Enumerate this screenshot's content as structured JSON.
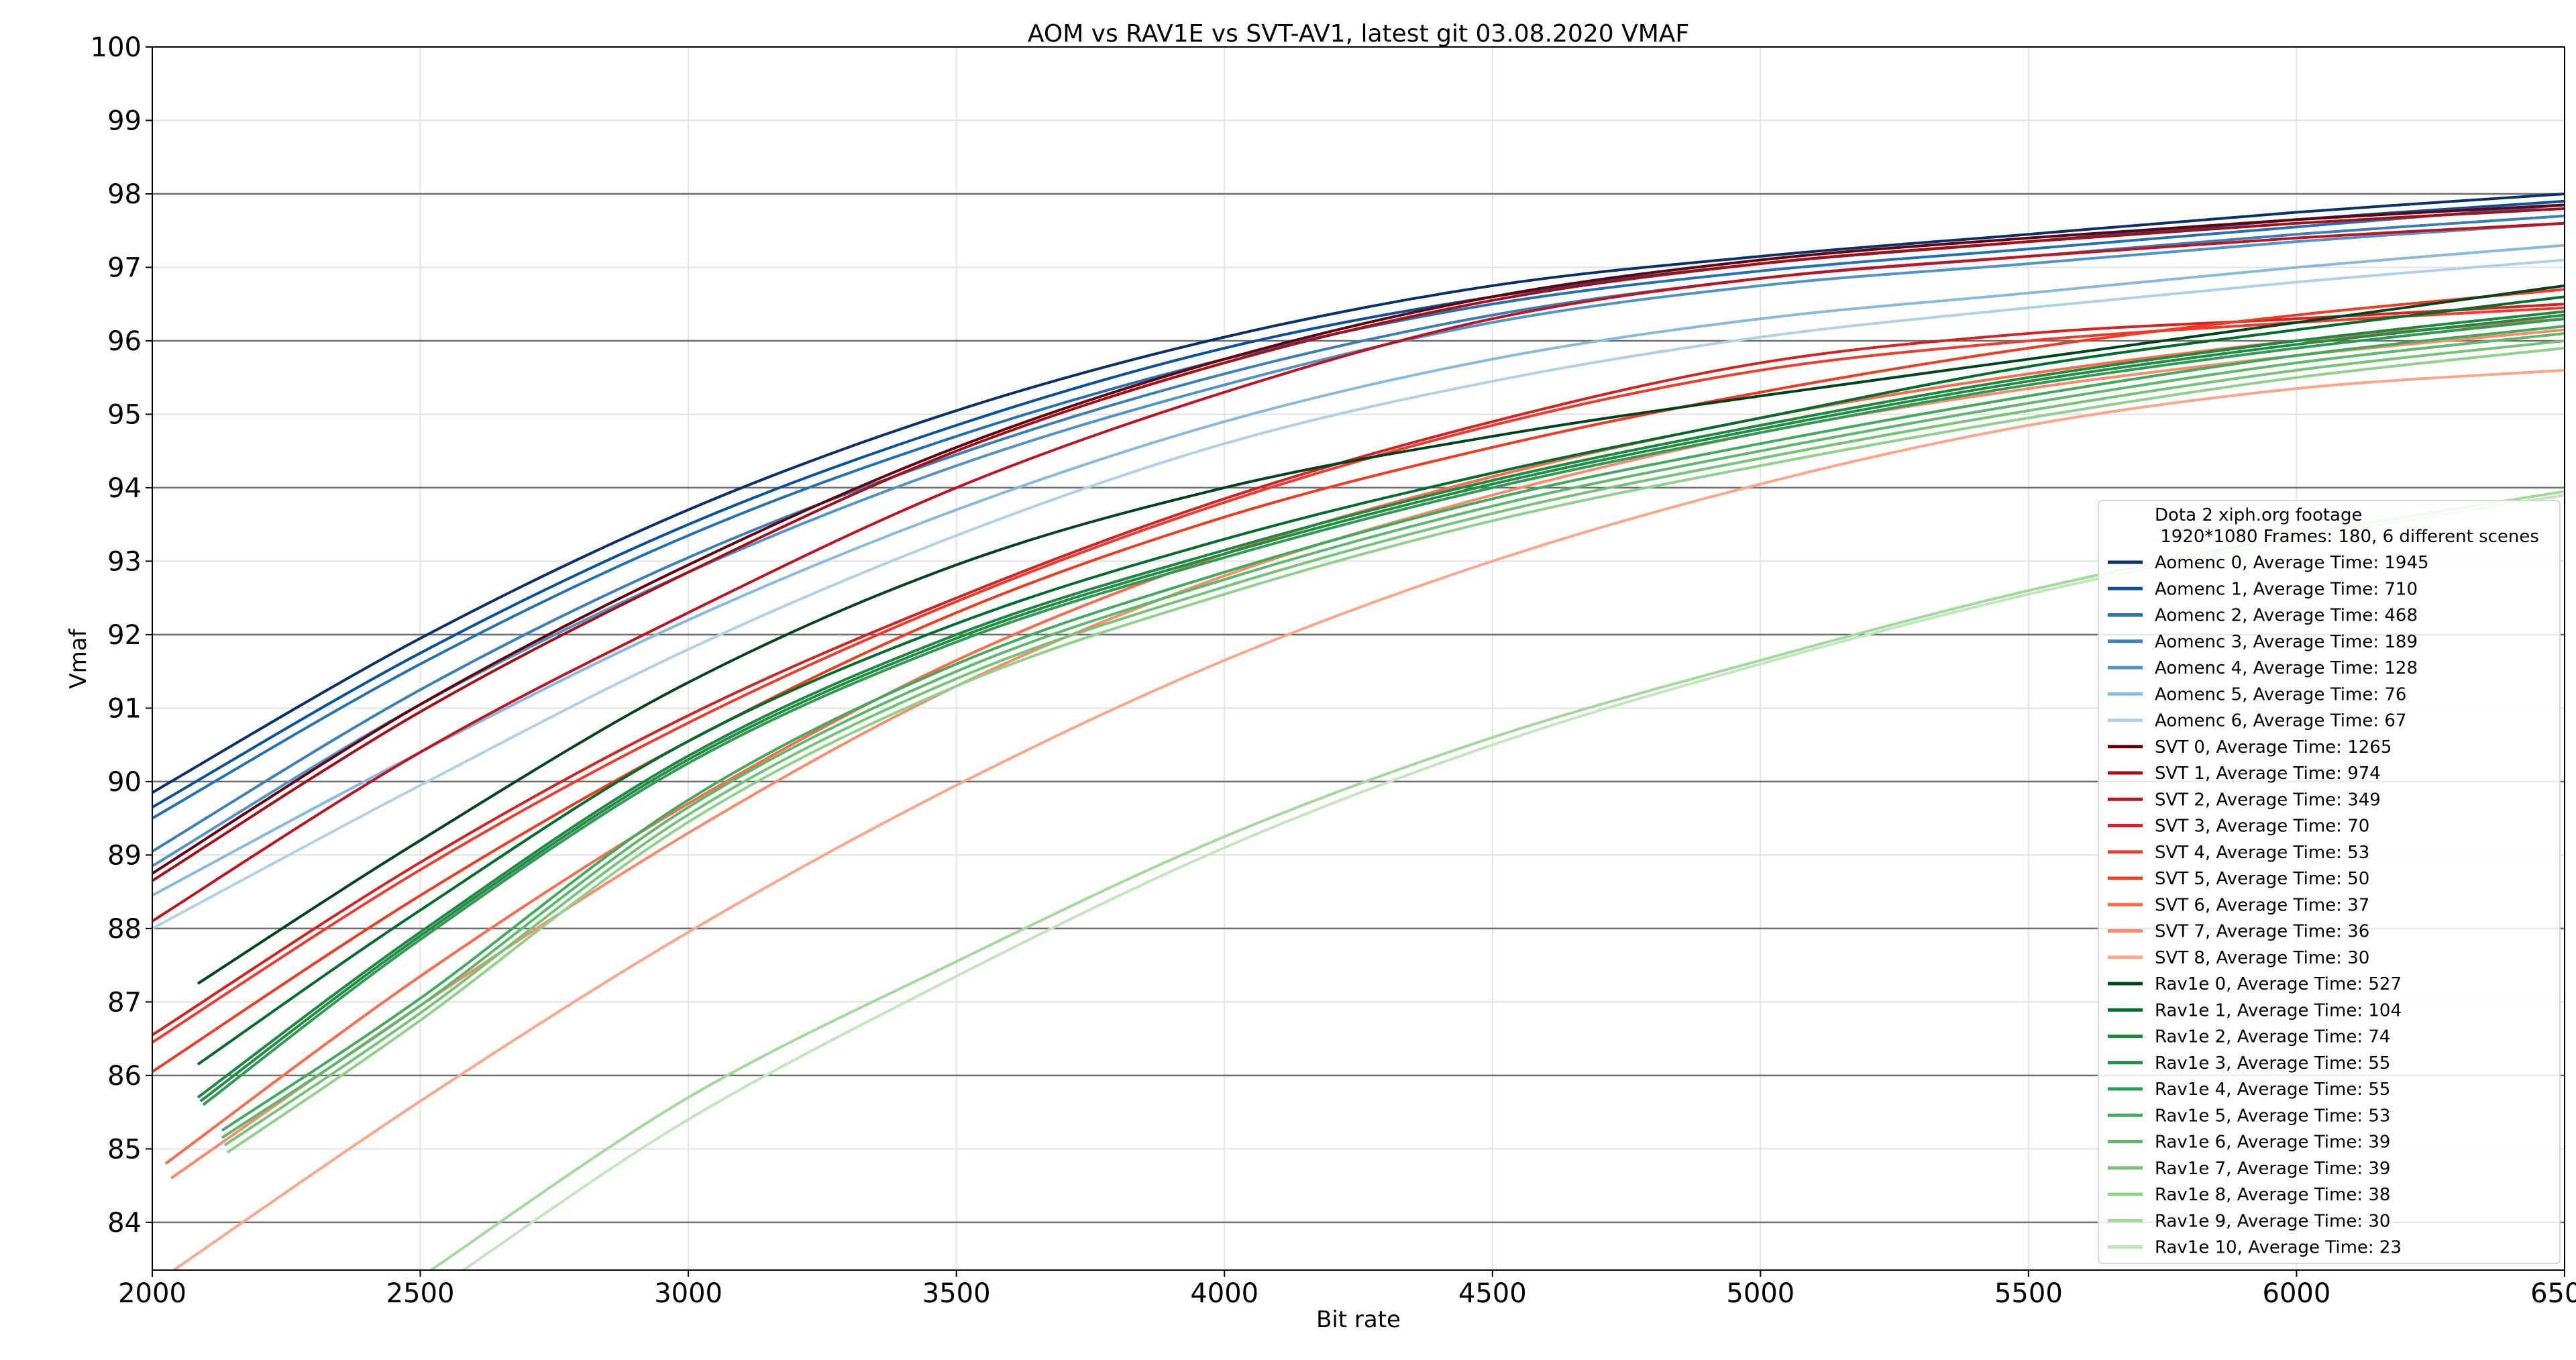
{
  "chart_data": {
    "type": "line",
    "title": "AOM vs RAV1E vs SVT-AV1, latest git 03.08.2020 VMAF",
    "xlabel": "Bit rate",
    "ylabel": "Vmaf",
    "xlim": [
      2000,
      6500
    ],
    "ylim": [
      83.35,
      100
    ],
    "x_ticks": [
      2000,
      2500,
      3000,
      3500,
      4000,
      4500,
      5000,
      5500,
      6000,
      6500
    ],
    "y_ticks": [
      84,
      85,
      86,
      87,
      88,
      89,
      90,
      91,
      92,
      93,
      94,
      95,
      96,
      97,
      98,
      99,
      100
    ],
    "major_y_grid": [
      84,
      86,
      88,
      90,
      92,
      94,
      96,
      98
    ],
    "grid": true,
    "legend_placement": "lower-right",
    "legend_title": "Dota 2 xiph.org footage\n 1920*1080 Frames: 180, 6 different scenes",
    "series": [
      {
        "name": "Aomenc 0, Average Time: 1945",
        "color": "#08306b",
        "x": [
          2000,
          2500,
          3000,
          3500,
          4000,
          4500,
          5000,
          5500,
          6000,
          6500
        ],
        "y": [
          89.85,
          91.95,
          93.7,
          95.05,
          96.05,
          96.75,
          97.15,
          97.45,
          97.75,
          98.0
        ]
      },
      {
        "name": "Aomenc 1, Average Time: 710",
        "color": "#08519c",
        "x": [
          2000,
          2500,
          3000,
          3500,
          4000,
          4500,
          5000,
          5500,
          6000,
          6500
        ],
        "y": [
          89.65,
          91.75,
          93.5,
          94.85,
          95.9,
          96.6,
          97.05,
          97.35,
          97.65,
          97.9
        ]
      },
      {
        "name": "Aomenc 2, Average Time: 468",
        "color": "#2171b5",
        "x": [
          2000,
          2500,
          3000,
          3500,
          4000,
          4500,
          5000,
          5500,
          6000,
          6500
        ],
        "y": [
          89.5,
          91.6,
          93.35,
          94.7,
          95.75,
          96.5,
          96.95,
          97.25,
          97.55,
          97.85
        ]
      },
      {
        "name": "Aomenc 3, Average Time: 189",
        "color": "#3a7fb8",
        "x": [
          2000,
          2500,
          3000,
          3500,
          4000,
          4500,
          5000,
          5500,
          6000,
          6500
        ],
        "y": [
          89.05,
          91.25,
          93.05,
          94.45,
          95.55,
          96.35,
          96.85,
          97.15,
          97.45,
          97.7
        ]
      },
      {
        "name": "Aomenc 4, Average Time: 128",
        "color": "#4f94c8",
        "x": [
          2000,
          2500,
          3000,
          3500,
          4000,
          4500,
          5000,
          5500,
          6000,
          6500
        ],
        "y": [
          88.85,
          91.05,
          92.85,
          94.3,
          95.4,
          96.25,
          96.75,
          97.05,
          97.35,
          97.6
        ]
      },
      {
        "name": "Aomenc 5, Average Time: 76",
        "color": "#86b9db",
        "x": [
          2000,
          2500,
          3000,
          3500,
          4000,
          4500,
          5000,
          5500,
          6000,
          6500
        ],
        "y": [
          88.45,
          90.4,
          92.2,
          93.7,
          94.9,
          95.75,
          96.3,
          96.65,
          97.0,
          97.3
        ]
      },
      {
        "name": "Aomenc 6, Average Time: 67",
        "color": "#b0d0e8",
        "x": [
          2000,
          2500,
          3000,
          3500,
          4000,
          4500,
          5000,
          5500,
          6000,
          6500
        ],
        "y": [
          88.0,
          89.95,
          91.8,
          93.35,
          94.6,
          95.45,
          96.05,
          96.45,
          96.8,
          97.1
        ]
      },
      {
        "name": "SVT 0, Average Time: 1265",
        "color": "#67000d",
        "x": [
          2000,
          2500,
          3000,
          3500,
          4000,
          4500,
          5000,
          5500,
          6000,
          6500
        ],
        "y": [
          88.75,
          91.05,
          92.95,
          94.55,
          95.75,
          96.6,
          97.1,
          97.4,
          97.65,
          97.85
        ]
      },
      {
        "name": "SVT 1, Average Time: 974",
        "color": "#a50f15",
        "x": [
          2000,
          2500,
          3000,
          3500,
          4000,
          4500,
          5000,
          5500,
          6000,
          6500
        ],
        "y": [
          88.65,
          90.95,
          92.85,
          94.5,
          95.7,
          96.55,
          97.05,
          97.35,
          97.6,
          97.8
        ]
      },
      {
        "name": "SVT 2, Average Time: 349",
        "color": "#c1121f",
        "x": [
          2000,
          2500,
          3000,
          3500,
          4000,
          4500,
          5000,
          5500,
          6000,
          6500
        ],
        "y": [
          88.1,
          90.4,
          92.3,
          94.0,
          95.3,
          96.3,
          96.85,
          97.15,
          97.4,
          97.6
        ]
      },
      {
        "name": "SVT 3, Average Time: 70",
        "color": "#d52221",
        "x": [
          2000,
          2500,
          3000,
          3500,
          4000,
          4500,
          5000,
          5500,
          6000,
          6500
        ],
        "y": [
          86.55,
          88.9,
          90.9,
          92.5,
          93.85,
          94.9,
          95.7,
          96.1,
          96.3,
          96.5
        ]
      },
      {
        "name": "SVT 4, Average Time: 53",
        "color": "#ef3b2c",
        "x": [
          2000,
          2500,
          3000,
          3500,
          4000,
          4500,
          5000,
          5500,
          6000,
          6500
        ],
        "y": [
          86.45,
          88.8,
          90.8,
          92.45,
          93.8,
          94.85,
          95.6,
          96.0,
          96.25,
          96.45
        ]
      },
      {
        "name": "SVT 5, Average Time: 50",
        "color": "#f03b20",
        "x": [
          2000,
          2500,
          3000,
          3500,
          4000,
          4500,
          5000,
          5500,
          6000,
          6500
        ],
        "y": [
          86.05,
          88.45,
          90.55,
          92.3,
          93.6,
          94.55,
          95.3,
          95.9,
          96.35,
          96.7
        ]
      },
      {
        "name": "SVT 6, Average Time: 37",
        "color": "#fb6a4a",
        "x": [
          2025,
          2500,
          3000,
          3500,
          4000,
          4500,
          5000,
          5500,
          6000,
          6500
        ],
        "y": [
          84.8,
          87.35,
          89.7,
          91.65,
          93.1,
          94.15,
          94.95,
          95.55,
          96.0,
          96.3
        ]
      },
      {
        "name": "SVT 7, Average Time: 36",
        "color": "#fc8a6a",
        "x": [
          2035,
          2500,
          3000,
          3500,
          4000,
          4500,
          5000,
          5500,
          6000,
          6500
        ],
        "y": [
          84.6,
          86.95,
          89.3,
          91.3,
          92.8,
          93.9,
          94.75,
          95.35,
          95.8,
          96.15
        ]
      },
      {
        "name": "SVT 8, Average Time: 30",
        "color": "#fca588",
        "x": [
          2040,
          2500,
          3000,
          3500,
          4000,
          4500,
          5000,
          5500,
          6000,
          6500
        ],
        "y": [
          83.35,
          85.65,
          87.95,
          89.95,
          91.65,
          93.0,
          94.05,
          94.85,
          95.35,
          95.6
        ]
      },
      {
        "name": "Rav1e 0, Average Time: 527",
        "color": "#00441b",
        "x": [
          2085,
          2500,
          3000,
          3500,
          4000,
          4500,
          5000,
          5500,
          6000,
          6500
        ],
        "y": [
          87.25,
          89.2,
          91.35,
          92.95,
          94.0,
          94.7,
          95.25,
          95.75,
          96.25,
          96.75
        ]
      },
      {
        "name": "Rav1e 1, Average Time: 104",
        "color": "#006d2c",
        "x": [
          2085,
          2500,
          3000,
          3500,
          4000,
          4500,
          5000,
          5500,
          6000,
          6500
        ],
        "y": [
          86.15,
          88.25,
          90.55,
          92.15,
          93.3,
          94.2,
          94.95,
          95.65,
          96.15,
          96.6
        ]
      },
      {
        "name": "Rav1e 2, Average Time: 74",
        "color": "#1a8a3f",
        "x": [
          2085,
          2500,
          3000,
          3500,
          4000,
          4500,
          5000,
          5500,
          6000,
          6500
        ],
        "y": [
          85.7,
          87.95,
          90.35,
          92.0,
          93.15,
          94.1,
          94.85,
          95.5,
          96.0,
          96.4
        ]
      },
      {
        "name": "Rav1e 3, Average Time: 55",
        "color": "#238b45",
        "x": [
          2090,
          2500,
          3000,
          3500,
          4000,
          4500,
          5000,
          5500,
          6000,
          6500
        ],
        "y": [
          85.65,
          87.9,
          90.3,
          91.95,
          93.1,
          94.05,
          94.8,
          95.45,
          95.95,
          96.35
        ]
      },
      {
        "name": "Rav1e 4, Average Time: 55",
        "color": "#2f9a52",
        "x": [
          2095,
          2500,
          3000,
          3500,
          4000,
          4500,
          5000,
          5500,
          6000,
          6500
        ],
        "y": [
          85.6,
          87.85,
          90.25,
          91.9,
          93.05,
          94.0,
          94.75,
          95.4,
          95.9,
          96.3
        ]
      },
      {
        "name": "Rav1e 5, Average Time: 53",
        "color": "#41ab5d",
        "x": [
          2130,
          2500,
          3000,
          3500,
          4000,
          4500,
          5000,
          5500,
          6000,
          6500
        ],
        "y": [
          85.25,
          87.05,
          89.75,
          91.6,
          92.85,
          93.85,
          94.6,
          95.25,
          95.8,
          96.2
        ]
      },
      {
        "name": "Rav1e 6, Average Time: 39",
        "color": "#5cb86a",
        "x": [
          2130,
          2500,
          3000,
          3500,
          4000,
          4500,
          5000,
          5500,
          6000,
          6500
        ],
        "y": [
          85.15,
          86.95,
          89.65,
          91.5,
          92.75,
          93.75,
          94.5,
          95.15,
          95.7,
          96.1
        ]
      },
      {
        "name": "Rav1e 7, Average Time: 39",
        "color": "#74c476",
        "x": [
          2135,
          2500,
          3000,
          3500,
          4000,
          4500,
          5000,
          5500,
          6000,
          6500
        ],
        "y": [
          85.05,
          86.85,
          89.55,
          91.4,
          92.65,
          93.65,
          94.4,
          95.05,
          95.6,
          96.0
        ]
      },
      {
        "name": "Rav1e 8, Average Time: 38",
        "color": "#8fd08a",
        "x": [
          2140,
          2500,
          3000,
          3500,
          4000,
          4500,
          5000,
          5500,
          6000,
          6500
        ],
        "y": [
          84.95,
          86.75,
          89.45,
          91.3,
          92.55,
          93.55,
          94.3,
          94.95,
          95.5,
          95.9
        ]
      },
      {
        "name": "Rav1e 9, Average Time: 30",
        "color": "#a1d99b",
        "x": [
          2520,
          3000,
          3500,
          4000,
          4500,
          5000,
          5500,
          6000,
          6500
        ],
        "y": [
          83.35,
          85.7,
          87.55,
          89.25,
          90.6,
          91.65,
          92.6,
          93.35,
          93.95
        ]
      },
      {
        "name": "Rav1e 10, Average Time: 23",
        "color": "#c2e6bb",
        "x": [
          2580,
          3000,
          3500,
          4000,
          4500,
          5000,
          5500,
          6000,
          6500
        ],
        "y": [
          83.35,
          85.4,
          87.35,
          89.1,
          90.5,
          91.6,
          92.55,
          93.3,
          93.9
        ]
      }
    ]
  }
}
